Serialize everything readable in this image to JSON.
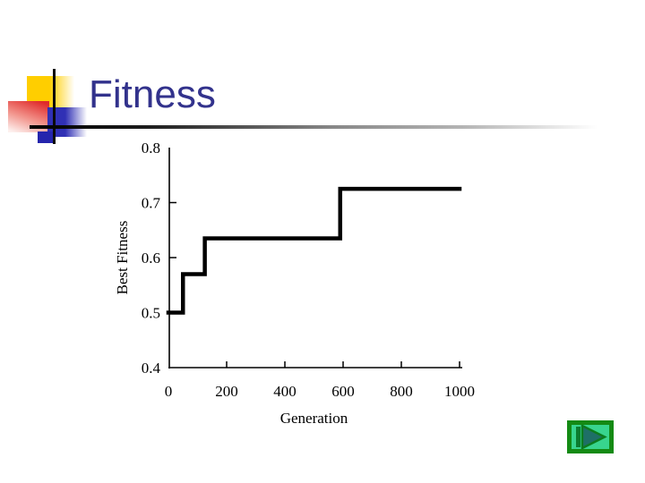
{
  "slide": {
    "title": "Fitness",
    "title_color": "#32328c",
    "background": "#ffffff"
  },
  "decoration": {
    "yellow_square": "#ffce00",
    "red_square": "#e02a2a",
    "blue_square": "#3030b5",
    "small_blue_square": "#2525ad",
    "cross_lines": "#0a0a0a",
    "rule_gradient": [
      "#000000",
      "#878787",
      "#ffffff"
    ]
  },
  "chart_data": {
    "type": "line",
    "subtype": "step",
    "title": "",
    "xlabel": "Generation",
    "ylabel": "Best Fitness",
    "xlim": [
      0,
      1000
    ],
    "ylim": [
      0.4,
      0.8
    ],
    "x_ticks": [
      0,
      200,
      400,
      600,
      800,
      1000
    ],
    "y_ticks": [
      0.4,
      0.5,
      0.6,
      0.7,
      0.8
    ],
    "grid": false,
    "legend": null,
    "axis_color": "#000000",
    "series": [
      {
        "name": "Best Fitness",
        "color": "#000000",
        "line_width": 4.5,
        "points": [
          [
            0,
            0.5
          ],
          [
            50,
            0.5
          ],
          [
            50,
            0.57
          ],
          [
            125,
            0.57
          ],
          [
            125,
            0.635
          ],
          [
            590,
            0.635
          ],
          [
            590,
            0.725
          ],
          [
            1000,
            0.725
          ]
        ]
      }
    ]
  },
  "nav": {
    "next_button": {
      "name": "next-slide",
      "frame_color": "#148a14",
      "fill_color": "#38d58e",
      "bar_color": "#0c7c2e",
      "triangle_fill": "#1e6f66",
      "triangle_stroke": "#0c7c1e"
    }
  }
}
